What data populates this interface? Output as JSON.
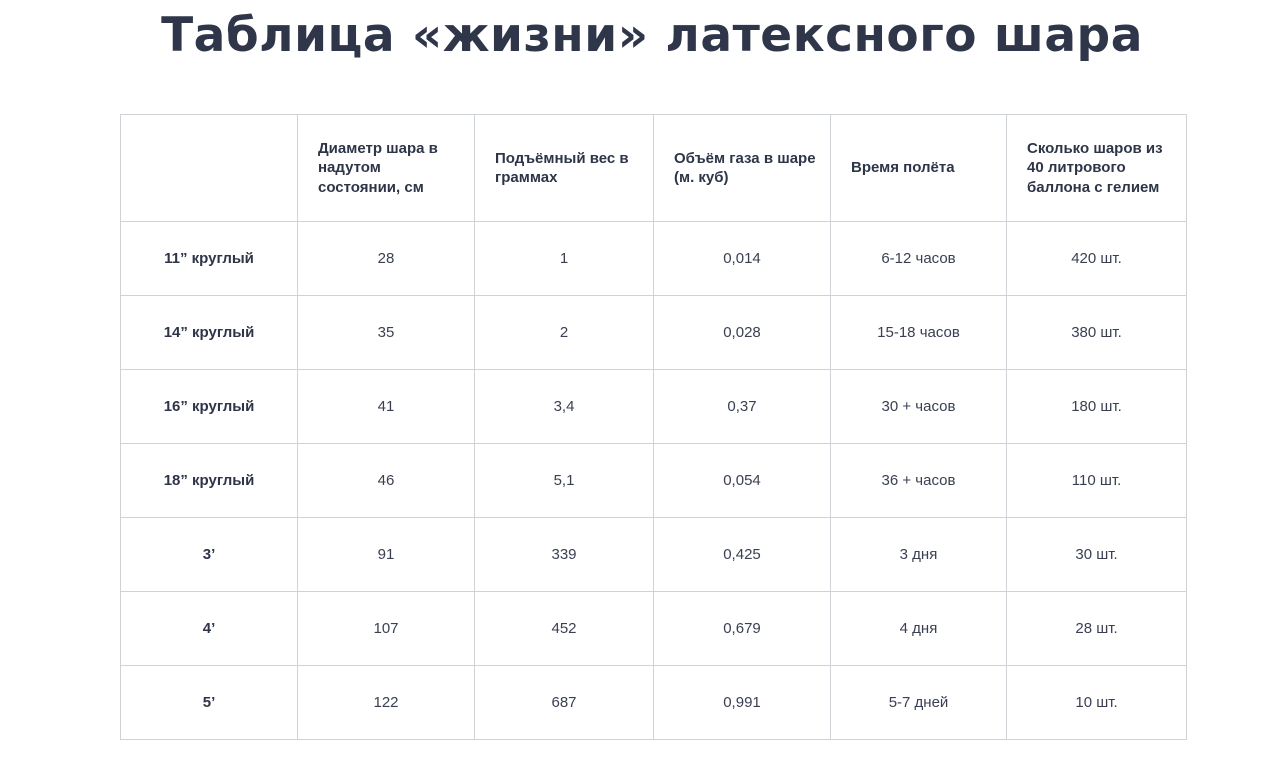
{
  "page": {
    "title": "Таблица «жизни» латексного шара"
  },
  "table": {
    "headers": [
      "",
      "Диаметр шара в надутом состоянии, см",
      "Подъёмный вес в граммах",
      "Объём газа в шаре (м. куб)",
      "Время полёта",
      "Сколько шаров из 40 литрового баллона с гелием"
    ],
    "rows": [
      [
        "11” круглый",
        "28",
        "1",
        "0,014",
        "6-12 часов",
        "420 шт."
      ],
      [
        "14” круглый",
        "35",
        "2",
        "0,028",
        "15-18 часов",
        "380 шт."
      ],
      [
        "16” круглый",
        "41",
        "3,4",
        "0,37",
        "30 + часов",
        "180 шт."
      ],
      [
        "18” круглый",
        "46",
        "5,1",
        "0,054",
        "36 + часов",
        "110 шт."
      ],
      [
        "3’",
        "91",
        "339",
        "0,425",
        "3 дня",
        "30 шт."
      ],
      [
        "4’",
        "107",
        "452",
        "0,679",
        "4 дня",
        "28 шт."
      ],
      [
        "5’",
        "122",
        "687",
        "0,991",
        "5-7 дней",
        "10 шт."
      ]
    ]
  },
  "colors": {
    "text": "#2e3548",
    "border": "#cfd2d6",
    "background": "#ffffff"
  }
}
